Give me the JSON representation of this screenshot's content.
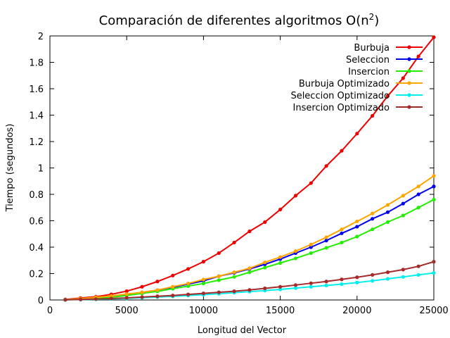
{
  "chart_data": {
    "type": "line",
    "title_main": "Comparación de diferentes algoritmos O(n",
    "title_sup": "2",
    "title_end": ")",
    "xlabel": "Longitud del Vector",
    "ylabel": "Tiempo (segundos)",
    "xlim": [
      0,
      25000
    ],
    "ylim": [
      0,
      2
    ],
    "xticks": [
      0,
      5000,
      10000,
      15000,
      20000,
      25000
    ],
    "yticks": [
      0,
      0.2,
      0.4,
      0.6,
      0.8,
      1,
      1.2,
      1.4,
      1.6,
      1.8,
      2
    ],
    "grid": false,
    "legend_position": "top-right",
    "x": [
      1000,
      2000,
      3000,
      4000,
      5000,
      6000,
      7000,
      8000,
      9000,
      10000,
      11000,
      12000,
      13000,
      14000,
      15000,
      16000,
      17000,
      18000,
      19000,
      20000,
      21000,
      22000,
      23000,
      24000,
      25000
    ],
    "series": [
      {
        "name": "Burbuja",
        "color": "#ee0000",
        "values": [
          0.004,
          0.015,
          0.025,
          0.043,
          0.067,
          0.1,
          0.14,
          0.185,
          0.235,
          0.29,
          0.355,
          0.435,
          0.52,
          0.59,
          0.685,
          0.79,
          0.885,
          1.015,
          1.13,
          1.26,
          1.395,
          1.545,
          1.68,
          1.845,
          1.99
        ]
      },
      {
        "name": "Seleccion",
        "color": "#0000ee",
        "values": [
          0.002,
          0.008,
          0.017,
          0.025,
          0.04,
          0.055,
          0.075,
          0.095,
          0.12,
          0.145,
          0.18,
          0.205,
          0.235,
          0.27,
          0.31,
          0.355,
          0.4,
          0.45,
          0.505,
          0.555,
          0.615,
          0.665,
          0.73,
          0.8,
          0.86
        ]
      },
      {
        "name": "Insercion",
        "color": "#22ee00",
        "values": [
          0.001,
          0.007,
          0.015,
          0.02,
          0.034,
          0.05,
          0.065,
          0.085,
          0.105,
          0.125,
          0.15,
          0.175,
          0.21,
          0.245,
          0.28,
          0.315,
          0.355,
          0.395,
          0.435,
          0.48,
          0.535,
          0.59,
          0.64,
          0.7,
          0.76
        ]
      },
      {
        "name": "Burbuja Optimizado",
        "color": "#ffa500",
        "values": [
          0.002,
          0.01,
          0.02,
          0.03,
          0.045,
          0.058,
          0.075,
          0.1,
          0.125,
          0.155,
          0.18,
          0.21,
          0.24,
          0.285,
          0.325,
          0.37,
          0.42,
          0.475,
          0.535,
          0.595,
          0.655,
          0.72,
          0.79,
          0.86,
          0.94
        ]
      },
      {
        "name": "Seleccion Optimizado",
        "color": "#00eeee",
        "values": [
          0.001,
          0.003,
          0.005,
          0.008,
          0.012,
          0.017,
          0.022,
          0.027,
          0.034,
          0.04,
          0.047,
          0.055,
          0.063,
          0.071,
          0.08,
          0.09,
          0.1,
          0.11,
          0.12,
          0.132,
          0.145,
          0.16,
          0.175,
          0.19,
          0.205
        ]
      },
      {
        "name": "Insercion Optimizado",
        "color": "#a52a2a",
        "values": [
          0.001,
          0.004,
          0.007,
          0.011,
          0.016,
          0.022,
          0.028,
          0.034,
          0.042,
          0.05,
          0.058,
          0.066,
          0.076,
          0.088,
          0.1,
          0.113,
          0.127,
          0.14,
          0.156,
          0.172,
          0.19,
          0.21,
          0.23,
          0.255,
          0.29
        ]
      }
    ]
  }
}
